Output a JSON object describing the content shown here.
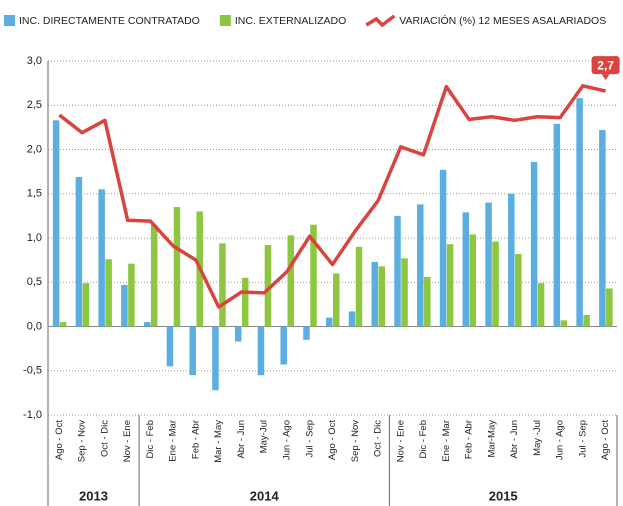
{
  "chart_data": {
    "type": "bar-line",
    "categories": [
      "Ago - Oct",
      "Sep - Nov",
      "Oct - Dic",
      "Nov - Ene",
      "Dic - Feb",
      "Ene - Mar",
      "Feb - Abr",
      "Mar - May",
      "Abr - Jun",
      "May-Jul",
      "Jun - Ago",
      "Jul - Sep",
      "Ago - Oct",
      "Sep - Nov",
      "Oct - Dic",
      "Nov - Ene",
      "Dic - Feb",
      "Ene - Mar",
      "Feb - Abr",
      "Mar-May",
      "Abr - Jun",
      "May -Jul",
      "Jun - Ago",
      "Jul - Sep",
      "Ago - Oct"
    ],
    "groups": [
      {
        "label": "2013",
        "size": 4
      },
      {
        "label": "2014",
        "size": 11
      },
      {
        "label": "2015",
        "size": 10
      }
    ],
    "series": [
      {
        "name": "INC. DIRECTAMENTE CONTRATADO",
        "color": "#5aaee0",
        "kind": "bar",
        "values": [
          2.33,
          1.69,
          1.55,
          0.47,
          0.05,
          -0.45,
          -0.55,
          -0.72,
          -0.17,
          -0.55,
          -0.43,
          -0.15,
          0.1,
          0.17,
          0.73,
          1.25,
          1.38,
          1.77,
          1.29,
          1.4,
          1.5,
          1.86,
          2.29,
          2.58,
          2.22
        ]
      },
      {
        "name": "INC. EXTERNALIZADO",
        "color": "#8dc63f",
        "kind": "bar",
        "values": [
          0.05,
          0.49,
          0.76,
          0.71,
          1.15,
          1.35,
          1.3,
          0.94,
          0.55,
          0.92,
          1.03,
          1.15,
          0.6,
          0.9,
          0.68,
          0.77,
          0.56,
          0.93,
          1.04,
          0.96,
          0.82,
          0.49,
          0.07,
          0.13,
          0.43
        ]
      },
      {
        "name": "VARIACIÓN (%) 12 MESES ASALARIADOS",
        "color": "#d9443f",
        "kind": "line",
        "values": [
          2.39,
          2.19,
          2.33,
          1.2,
          1.19,
          0.91,
          0.75,
          0.22,
          0.39,
          0.38,
          0.62,
          1.02,
          0.7,
          1.08,
          1.42,
          2.03,
          1.94,
          2.71,
          2.34,
          2.37,
          2.33,
          2.37,
          2.36,
          2.72,
          2.66
        ],
        "value_labels": [
          null,
          null,
          null,
          null,
          null,
          null,
          null,
          null,
          null,
          null,
          null,
          null,
          null,
          null,
          null,
          null,
          null,
          null,
          null,
          null,
          null,
          null,
          null,
          null,
          "2,7"
        ]
      }
    ],
    "ylim": [
      -1,
      3
    ],
    "yticks": [
      {
        "value": -1,
        "label": "-1,0"
      },
      {
        "value": -0.5,
        "label": "-0,5"
      },
      {
        "value": 0,
        "label": "0,0"
      },
      {
        "value": 0.5,
        "label": "0,5"
      },
      {
        "value": 1,
        "label": "1,0"
      },
      {
        "value": 1.5,
        "label": "1,5"
      },
      {
        "value": 2,
        "label": "2,0"
      },
      {
        "value": 2.5,
        "label": "2,5"
      },
      {
        "value": 3,
        "label": "3,0"
      }
    ],
    "grid": true
  }
}
